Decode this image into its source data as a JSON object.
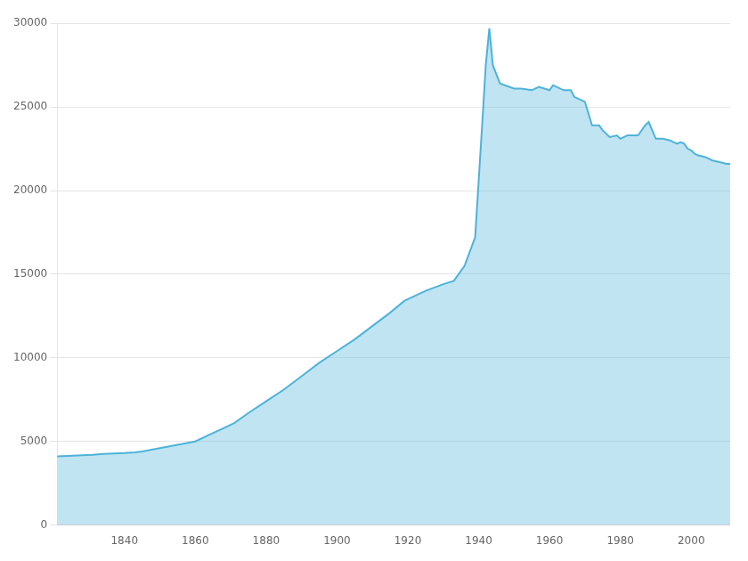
{
  "chart_data": {
    "type": "area",
    "x": [
      1821,
      1831,
      1834,
      1840,
      1843,
      1845,
      1850,
      1855,
      1860,
      1864,
      1867,
      1871,
      1875,
      1880,
      1885,
      1890,
      1895,
      1900,
      1905,
      1910,
      1915,
      1919,
      1925,
      1930,
      1933,
      1936,
      1939,
      1941,
      1942,
      1943,
      1944,
      1946,
      1950,
      1952,
      1955,
      1957,
      1960,
      1961,
      1964,
      1966,
      1967,
      1970,
      1972,
      1974,
      1975,
      1977,
      1979,
      1980,
      1982,
      1985,
      1987,
      1988,
      1990,
      1992,
      1994,
      1995,
      1996,
      1997,
      1998,
      1999,
      2000,
      2001,
      2002,
      2004,
      2006,
      2008,
      2010,
      2011
    ],
    "values": [
      4100,
      4200,
      4250,
      4300,
      4350,
      4400,
      4600,
      4800,
      5000,
      5400,
      5700,
      6100,
      6700,
      7400,
      8100,
      8900,
      9700,
      10400,
      11100,
      11900,
      12700,
      13400,
      14000,
      14400,
      14600,
      15500,
      17200,
      24000,
      27500,
      29700,
      27500,
      26400,
      26100,
      26100,
      26000,
      26200,
      26000,
      26300,
      26000,
      26000,
      25600,
      25300,
      23900,
      23900,
      23600,
      23200,
      23300,
      23100,
      23300,
      23300,
      23900,
      24100,
      23100,
      23100,
      23000,
      22900,
      22800,
      22900,
      22800,
      22500,
      22400,
      22200,
      22100,
      22000,
      21800,
      21700,
      21600,
      21600
    ],
    "color": "#4db3d9",
    "xlim": [
      1821,
      2011
    ],
    "xticks": [
      1840,
      1860,
      1880,
      1900,
      1920,
      1940,
      1960,
      1980,
      2000
    ],
    "ylim": [
      0,
      30000
    ],
    "yticks": [
      0,
      5000,
      10000,
      15000,
      20000,
      25000,
      30000
    ],
    "grid": "y"
  }
}
